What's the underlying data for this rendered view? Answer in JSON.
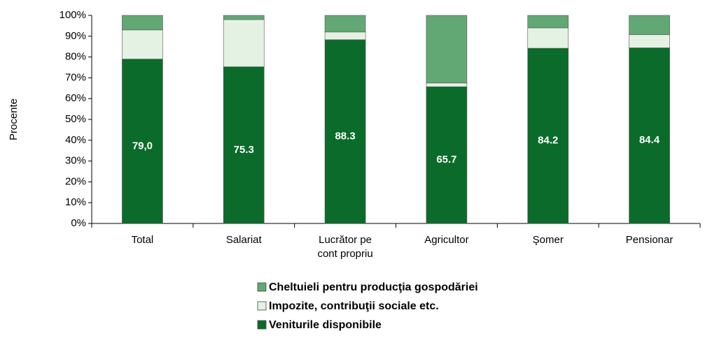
{
  "chart_data": {
    "type": "stacked_bar",
    "y_label": "Procente",
    "categories": [
      "Total",
      "Salariat",
      "Lucrător pe cont propriu",
      "Agricultor",
      "Şomer",
      "Pensionar"
    ],
    "series": [
      {
        "name": "Veniturile disponibile",
        "color": "#0b6b2b",
        "values": [
          79.0,
          75.3,
          88.3,
          65.7,
          84.2,
          84.4
        ],
        "value_labels": [
          "79,0",
          "75.3",
          "88.3",
          "65.7",
          "84.2",
          "84.4"
        ]
      },
      {
        "name": "Impozite, contribuţii sociale etc.",
        "color": "#e4f2e4",
        "values": [
          14,
          22.7,
          3.7,
          1.8,
          9.8,
          6.3
        ]
      },
      {
        "name": "Cheltuieli pentru producţia gospodăriei",
        "color": "#62a874",
        "values": [
          7,
          2,
          8,
          32.5,
          6,
          9.3
        ]
      }
    ],
    "ylim": [
      0,
      100
    ],
    "yticks": [
      {
        "value": 0,
        "label": "0%"
      },
      {
        "value": 10,
        "label": "10%"
      },
      {
        "value": 20,
        "label": "20%"
      },
      {
        "value": 30,
        "label": "30%"
      },
      {
        "value": 40,
        "label": "40%"
      },
      {
        "value": 50,
        "label": "50%"
      },
      {
        "value": 60,
        "label": "60%"
      },
      {
        "value": 70,
        "label": "70%"
      },
      {
        "value": 80,
        "label": "80%"
      },
      {
        "value": 90,
        "label": "90%"
      },
      {
        "value": 100,
        "label": "100%"
      }
    ],
    "legend": "bottom"
  }
}
